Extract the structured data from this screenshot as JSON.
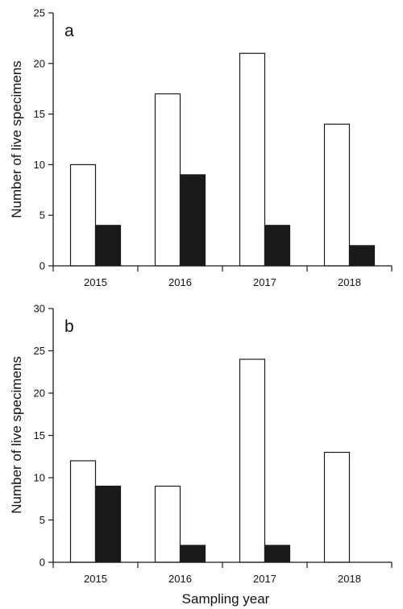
{
  "colors": {
    "series1": "#ffffff",
    "series2": "#1a1a1a",
    "axis": "#1a1a1a"
  },
  "xlabel": "Sampling year",
  "chart_data": [
    {
      "type": "bar",
      "panel_label": "a",
      "ylabel": "Number of live specimens",
      "categories": [
        "2015",
        "2016",
        "2017",
        "2018"
      ],
      "series": [
        {
          "values": [
            10,
            17,
            21,
            14
          ]
        },
        {
          "values": [
            4,
            9,
            4,
            2
          ]
        }
      ],
      "ylim": [
        0,
        25
      ],
      "yticks": [
        0,
        5,
        10,
        15,
        20,
        25
      ],
      "grid": false
    },
    {
      "type": "bar",
      "panel_label": "b",
      "ylabel": "Number of live specimens",
      "categories": [
        "2015",
        "2016",
        "2017",
        "2018"
      ],
      "series": [
        {
          "values": [
            12,
            9,
            24,
            13
          ]
        },
        {
          "values": [
            9,
            2,
            2,
            0
          ]
        }
      ],
      "ylim": [
        0,
        30
      ],
      "yticks": [
        0,
        5,
        10,
        15,
        20,
        25,
        30
      ],
      "grid": false
    }
  ]
}
